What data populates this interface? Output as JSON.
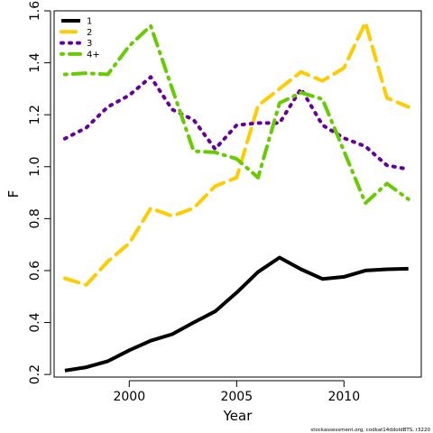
{
  "chart_data": {
    "type": "line",
    "title": "",
    "xlabel": "Year",
    "ylabel": "F",
    "xlim": [
      1996.5,
      2013.6
    ],
    "ylim": [
      0.19,
      1.6
    ],
    "xticks": [
      2000,
      2005,
      2010
    ],
    "xtick_labels": [
      "2000",
      "2005",
      "2010"
    ],
    "yticks": [
      0.2,
      0.4,
      0.6,
      0.8,
      1.0,
      1.2,
      1.4,
      1.6
    ],
    "ytick_labels": [
      "0.2",
      "0.4",
      "0.6",
      "0.8",
      "1.0",
      "1.2",
      "1.4",
      "1.6"
    ],
    "grid": false,
    "legend_position": "top-left",
    "x": [
      1997,
      1998,
      1999,
      2000,
      2001,
      2002,
      2003,
      2004,
      2005,
      2006,
      2007,
      2008,
      2009,
      2010,
      2011,
      2012,
      2013
    ],
    "series": [
      {
        "name": "1",
        "color": "#000000",
        "dash": "solid",
        "values": [
          0.215,
          0.228,
          0.251,
          0.293,
          0.33,
          0.355,
          0.4,
          0.443,
          0.515,
          0.595,
          0.65,
          0.605,
          0.568,
          0.576,
          0.6,
          0.605,
          0.607
        ]
      },
      {
        "name": "2",
        "color": "#ffcc00",
        "dash": "dashed",
        "values": [
          0.57,
          0.545,
          0.635,
          0.705,
          0.84,
          0.81,
          0.84,
          0.925,
          0.958,
          1.235,
          1.3,
          1.365,
          1.33,
          1.38,
          1.555,
          1.265,
          1.23
        ]
      },
      {
        "name": "3",
        "color": "#660099",
        "dash": "dotted",
        "values": [
          1.108,
          1.15,
          1.23,
          1.275,
          1.345,
          1.22,
          1.18,
          1.068,
          1.16,
          1.168,
          1.168,
          1.3,
          1.16,
          1.11,
          1.078,
          1.005,
          0.99
        ]
      },
      {
        "name": "4+",
        "color": "#66cc00",
        "dash": "dotdash",
        "values": [
          1.355,
          1.36,
          1.355,
          1.465,
          1.542,
          1.3,
          1.06,
          1.055,
          1.03,
          0.958,
          1.245,
          1.285,
          1.26,
          1.06,
          0.86,
          0.935,
          0.875
        ]
      }
    ]
  },
  "footer": {
    "credit": "stockassessment.org, codkat14ddoldBTS, r3220"
  }
}
